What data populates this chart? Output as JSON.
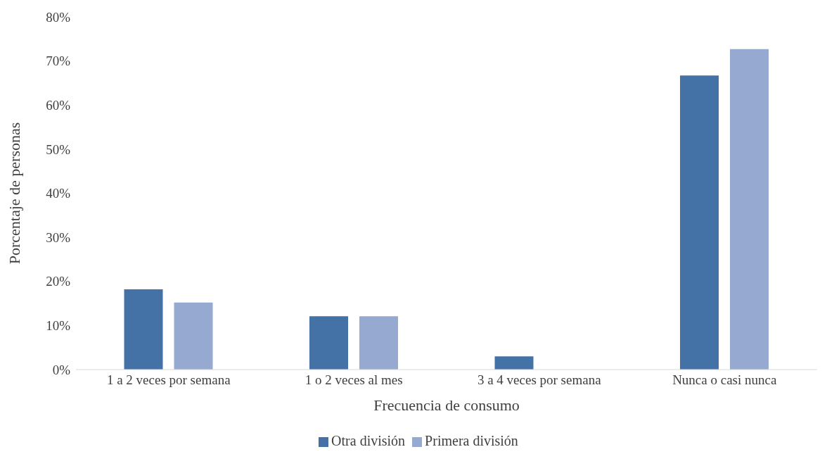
{
  "chart_data": {
    "type": "bar",
    "xlabel": "Frecuencia de consumo",
    "ylabel": "Porcentaje de personas",
    "categories": [
      "1 a 2 veces por semana",
      "1 o 2 veces al mes",
      "3 a 4 veces por semana",
      "Nunca o casi nunca"
    ],
    "series": [
      {
        "name": "Otra división",
        "color": "#4472a6",
        "values": [
          18.2,
          12.1,
          3.0,
          66.7
        ]
      },
      {
        "name": "Primera división",
        "color": "#95a9d1",
        "values": [
          15.2,
          12.1,
          0,
          72.7
        ]
      }
    ],
    "ylim": [
      0,
      80
    ],
    "yticks": [
      {
        "value": 0,
        "label": "0%"
      },
      {
        "value": 10,
        "label": "10%"
      },
      {
        "value": 20,
        "label": "20%"
      },
      {
        "value": 30,
        "label": "30%"
      },
      {
        "value": 40,
        "label": "40%"
      },
      {
        "value": 50,
        "label": "50%"
      },
      {
        "value": 60,
        "label": "60%"
      },
      {
        "value": 70,
        "label": "70%"
      },
      {
        "value": 80,
        "label": "80%"
      }
    ],
    "grid": false,
    "legend": "bottom"
  }
}
